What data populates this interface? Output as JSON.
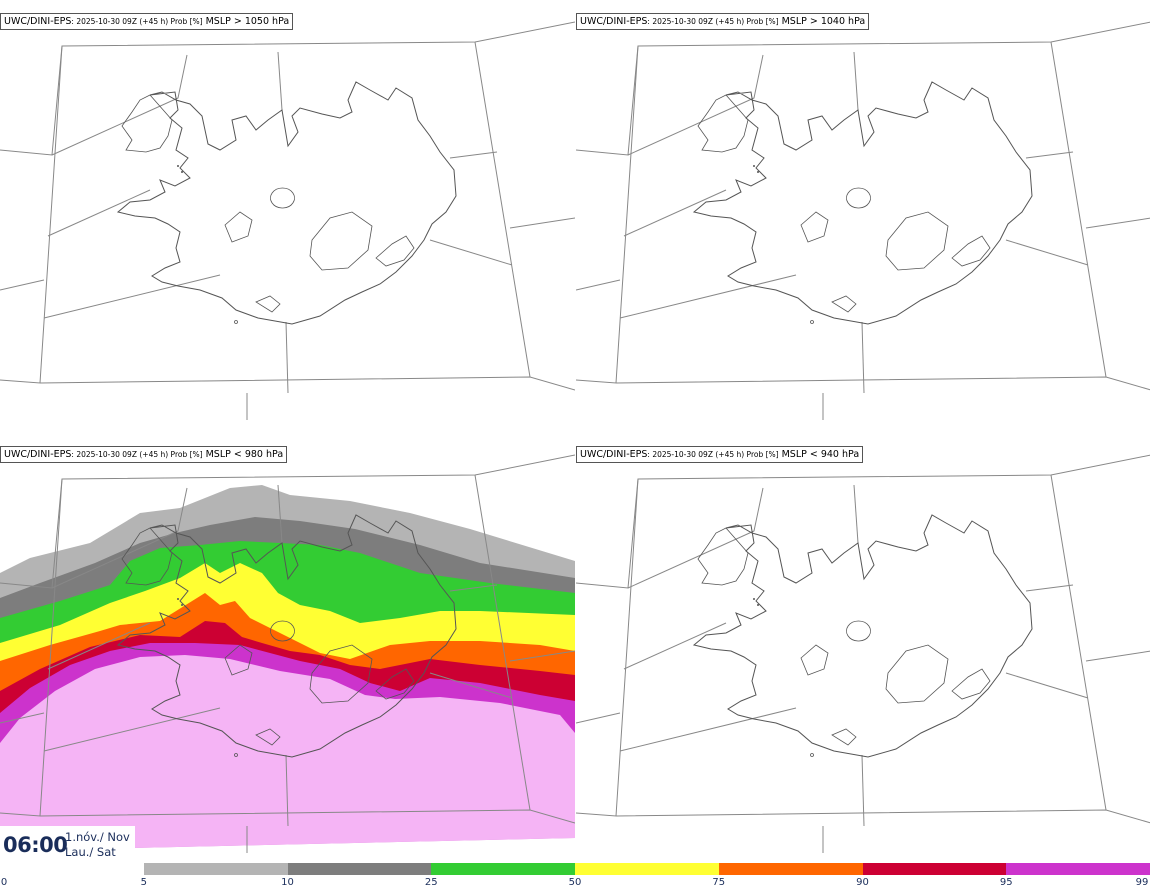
{
  "panels": [
    {
      "model": "UWC/DINI-EPS",
      "run": ": 2025-10-30 09Z (+45 h) Prob [%]",
      "variable": " MSLP > 1050 hPa"
    },
    {
      "model": "UWC/DINI-EPS",
      "run": ": 2025-10-30 09Z (+45 h) Prob [%]",
      "variable": " MSLP > 1040 hPa"
    },
    {
      "model": "UWC/DINI-EPS",
      "run": ": 2025-10-30 09Z (+45 h) Prob [%]",
      "variable": " MSLP < 980 hPa"
    },
    {
      "model": "UWC/DINI-EPS",
      "run": ": 2025-10-30 09Z (+45 h) Prob [%]",
      "variable": " MSLP < 940 hPa"
    }
  ],
  "valid_time": {
    "time": "06:00",
    "date_line1": "1.nóv./ Nov",
    "date_line2": "Lau./ Sat"
  },
  "colorbar": {
    "ticks": [
      "0",
      "5",
      "10",
      "25",
      "50",
      "75",
      "90",
      "95",
      "99"
    ],
    "colors": [
      "#ffffff",
      "#b4b4b4",
      "#7d7d7d",
      "#33cc33",
      "#ffff33",
      "#ff6600",
      "#cc0033",
      "#cc33cc",
      "#f5b4f5"
    ]
  },
  "colors": {
    "coast": "#555555",
    "frame": "#888888"
  }
}
